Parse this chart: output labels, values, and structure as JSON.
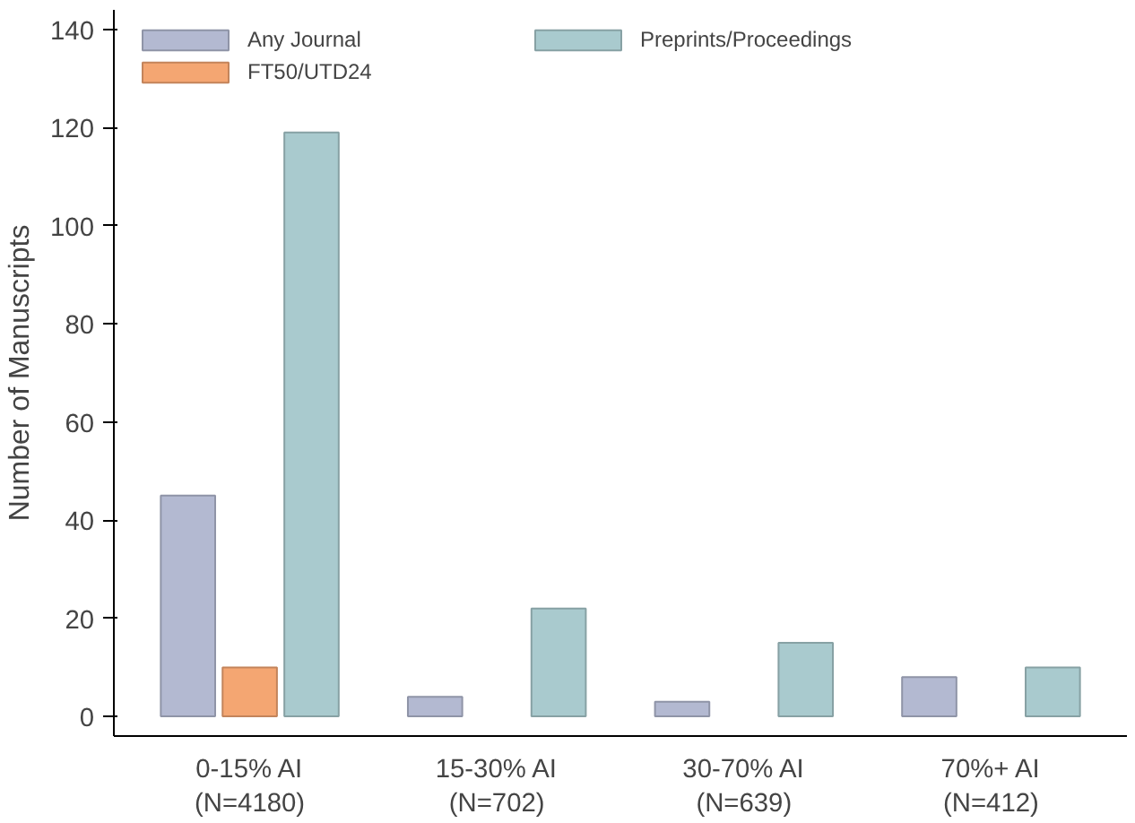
{
  "chart_data": {
    "type": "bar",
    "ylabel": "Number of Manuscripts",
    "categories": [
      "0-15% AI\n(N=4180)",
      "15-30% AI\n(N=702)",
      "30-70% AI\n(N=639)",
      "70%+ AI\n(N=412)"
    ],
    "series": [
      {
        "name": "Any Journal",
        "color": "#b3b9d1",
        "values": [
          45,
          4,
          3,
          8
        ]
      },
      {
        "name": "FT50/UTD24",
        "color": "#f4a672",
        "values": [
          10,
          null,
          null,
          null
        ]
      },
      {
        "name": "Preprints/Proceedings",
        "color": "#a9cace",
        "values": [
          119,
          22,
          15,
          10
        ]
      }
    ],
    "ylim": [
      -4,
      144
    ],
    "yticks": [
      0,
      20,
      40,
      60,
      80,
      100,
      120,
      140
    ],
    "grid": false,
    "legend": "top left"
  }
}
